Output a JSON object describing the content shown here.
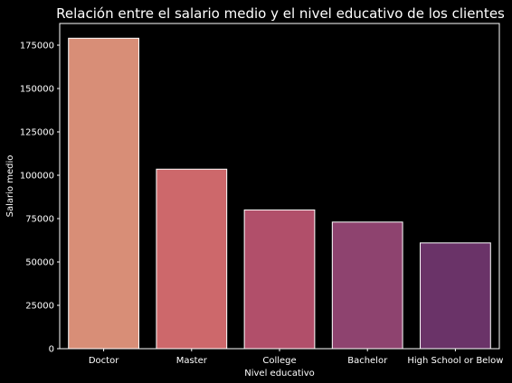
{
  "chart_data": {
    "type": "bar",
    "title": "Relación entre el salario medio y el nivel educativo de los clientes",
    "xlabel": "Nivel educativo",
    "ylabel": "Salario medio",
    "categories": [
      "Doctor",
      "Master",
      "College",
      "Bachelor",
      "High School or Below"
    ],
    "values": [
      179000,
      103500,
      80000,
      73000,
      61000
    ],
    "colors": [
      "#d88e77",
      "#cd686b",
      "#b14f6a",
      "#8e436f",
      "#6a3368"
    ],
    "ylim": [
      0,
      187500
    ],
    "yticks": [
      0,
      25000,
      50000,
      75000,
      100000,
      125000,
      150000,
      175000
    ],
    "grid": false,
    "legend": "none"
  }
}
